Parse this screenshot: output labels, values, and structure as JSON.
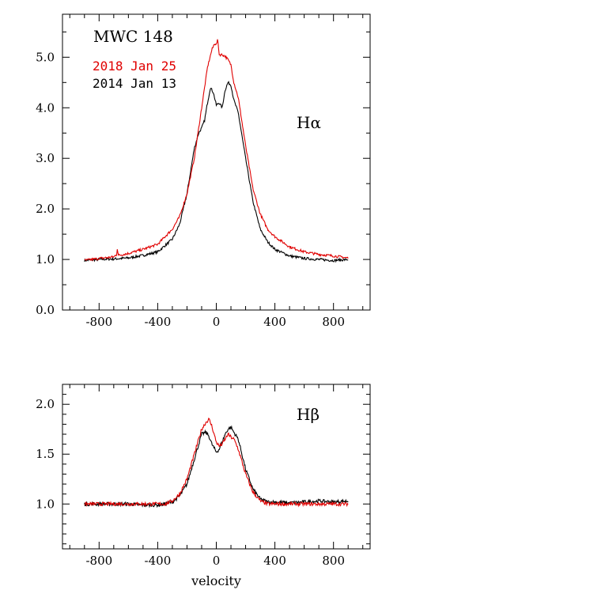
{
  "chart_data": [
    {
      "type": "line",
      "title": "MWC 148",
      "line_label": "Hα",
      "xlim": [
        -1050,
        1050
      ],
      "ylim": [
        0,
        5.85
      ],
      "xticks": [
        -800,
        -400,
        0,
        400,
        800
      ],
      "xtick_labels": [
        "-800",
        "-400",
        "0",
        "400",
        "800"
      ],
      "yticks": [
        0,
        1,
        2,
        3,
        4,
        5
      ],
      "ytick_labels": [
        "0.0",
        "1.0",
        "2.0",
        "3.0",
        "4.0",
        "5.0"
      ],
      "xlabel": "",
      "legend_position": "top-left",
      "series": [
        {
          "name": "2018 Jan 25",
          "color": "#e00000",
          "x": [
            -900,
            -800,
            -700,
            -680,
            -675,
            -670,
            -600,
            -500,
            -400,
            -300,
            -250,
            -200,
            -150,
            -100,
            -60,
            -30,
            -10,
            0,
            10,
            20,
            40,
            60,
            80,
            100,
            120,
            150,
            200,
            250,
            300,
            350,
            400,
            500,
            600,
            700,
            800,
            900
          ],
          "y": [
            0.98,
            1.02,
            1.05,
            1.1,
            1.25,
            1.08,
            1.12,
            1.2,
            1.3,
            1.6,
            1.85,
            2.3,
            3.0,
            4.0,
            4.8,
            5.15,
            5.28,
            5.25,
            5.35,
            5.05,
            5.05,
            5.02,
            4.95,
            4.85,
            4.5,
            4.2,
            3.25,
            2.4,
            1.9,
            1.6,
            1.45,
            1.25,
            1.15,
            1.1,
            1.07,
            1.03
          ]
        },
        {
          "name": "2014 Jan 13",
          "color": "#000000",
          "x": [
            -900,
            -800,
            -700,
            -600,
            -500,
            -400,
            -300,
            -250,
            -200,
            -150,
            -120,
            -100,
            -80,
            -60,
            -40,
            -20,
            0,
            20,
            40,
            60,
            80,
            100,
            120,
            150,
            200,
            250,
            300,
            350,
            400,
            500,
            600,
            700,
            800,
            900
          ],
          "y": [
            0.98,
            1.0,
            1.01,
            1.03,
            1.08,
            1.15,
            1.4,
            1.7,
            2.3,
            3.2,
            3.5,
            3.6,
            3.75,
            4.1,
            4.4,
            4.3,
            4.05,
            4.1,
            4.0,
            4.35,
            4.5,
            4.45,
            4.15,
            3.9,
            3.0,
            2.15,
            1.6,
            1.35,
            1.2,
            1.07,
            1.02,
            1.0,
            0.98,
            1.0
          ]
        }
      ]
    },
    {
      "type": "line",
      "line_label": "Hβ",
      "xlim": [
        -1050,
        1050
      ],
      "ylim": [
        0.55,
        2.2
      ],
      "xticks": [
        -800,
        -400,
        0,
        400,
        800
      ],
      "xtick_labels": [
        "-800",
        "-400",
        "0",
        "400",
        "800"
      ],
      "yticks": [
        1.0,
        1.5,
        2.0
      ],
      "ytick_labels": [
        "1.0",
        "1.5",
        "2.0"
      ],
      "xlabel": "velocity",
      "series": [
        {
          "name": "2018 Jan 25",
          "color": "#e00000",
          "x": [
            -900,
            -800,
            -700,
            -600,
            -500,
            -400,
            -350,
            -300,
            -250,
            -200,
            -150,
            -100,
            -70,
            -50,
            -30,
            0,
            20,
            40,
            60,
            80,
            100,
            120,
            150,
            200,
            250,
            300,
            350,
            400,
            500,
            600,
            700,
            800,
            900
          ],
          "y": [
            1.0,
            1.0,
            1.0,
            1.0,
            1.0,
            1.0,
            1.0,
            1.03,
            1.1,
            1.25,
            1.5,
            1.75,
            1.82,
            1.85,
            1.78,
            1.62,
            1.58,
            1.6,
            1.65,
            1.7,
            1.67,
            1.65,
            1.55,
            1.3,
            1.12,
            1.03,
            1.0,
            1.0,
            1.0,
            1.0,
            1.0,
            1.0,
            1.0
          ]
        },
        {
          "name": "2014 Jan 13",
          "color": "#000000",
          "x": [
            -900,
            -800,
            -700,
            -600,
            -500,
            -400,
            -350,
            -300,
            -250,
            -200,
            -150,
            -100,
            -70,
            -50,
            -30,
            0,
            20,
            40,
            60,
            80,
            100,
            120,
            150,
            200,
            250,
            300,
            350,
            400,
            500,
            600,
            700,
            800,
            900
          ],
          "y": [
            1.0,
            1.0,
            1.0,
            1.0,
            0.99,
            0.99,
            1.0,
            1.02,
            1.08,
            1.2,
            1.45,
            1.7,
            1.72,
            1.68,
            1.6,
            1.52,
            1.55,
            1.62,
            1.7,
            1.75,
            1.77,
            1.72,
            1.65,
            1.35,
            1.15,
            1.05,
            1.02,
            1.02,
            1.01,
            1.02,
            1.03,
            1.02,
            1.03
          ]
        }
      ]
    }
  ]
}
